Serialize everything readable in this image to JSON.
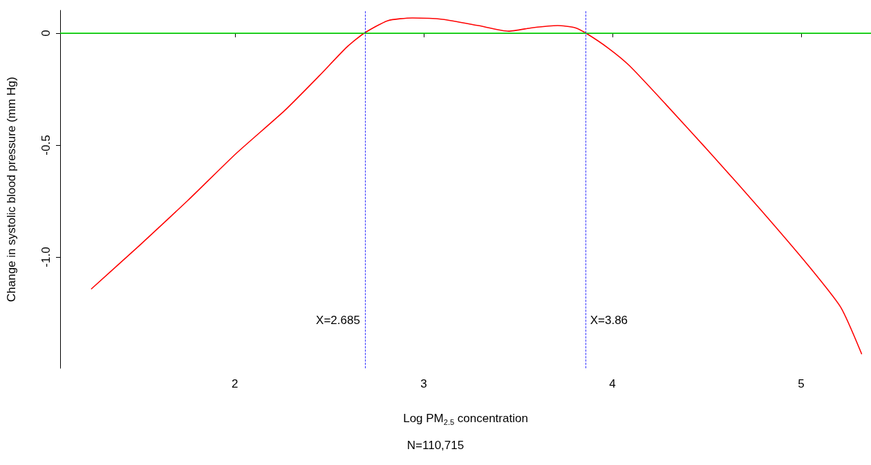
{
  "chart_data": {
    "type": "line",
    "xlabel": "Log PM$_{2.5}$ concentration",
    "ylabel": "Change in systolic blood pressure (mm Hg)",
    "series": [
      {
        "color": "#ff0000",
        "x": [
          1.24,
          1.495,
          1.751,
          2.007,
          2.263,
          2.446,
          2.593,
          2.685,
          2.81,
          2.94,
          3.1,
          3.29,
          3.45,
          3.58,
          3.71,
          3.8,
          3.86,
          3.98,
          4.09,
          4.28,
          4.53,
          4.79,
          5.04,
          5.21,
          5.32
        ],
        "values": [
          -1.142,
          -0.948,
          -0.747,
          -0.537,
          -0.346,
          -0.191,
          -0.062,
          0,
          0.056,
          0.068,
          0.062,
          0.034,
          0.009,
          0.025,
          0.034,
          0.025,
          0,
          -0.068,
          -0.145,
          -0.315,
          -0.546,
          -0.793,
          -1.04,
          -1.225,
          -1.432
        ]
      }
    ],
    "xlim": [
      1.074,
      5.37
    ],
    "xticks": [
      2,
      3,
      4,
      5
    ],
    "ylim": [
      -1.497,
      0.102
    ],
    "yticks": [
      0,
      -0.5,
      {
        "value": -1,
        "label": "-1.0"
      }
    ],
    "ref_lines": [
      {
        "axis": "y",
        "value": 0,
        "color": "#00ee00",
        "line_style": "solid"
      },
      {
        "axis": "x",
        "value": 2.685,
        "color": "#0000ff",
        "line_style": "dashed",
        "label": "X=2.685"
      },
      {
        "axis": "x",
        "value": 3.86,
        "color": "#0000ff",
        "line_style": "dashed",
        "label": "X=3.86"
      }
    ],
    "annotations": [
      "N=110,715"
    ],
    "grid": false,
    "marker": "none",
    "line_style": "solid"
  }
}
